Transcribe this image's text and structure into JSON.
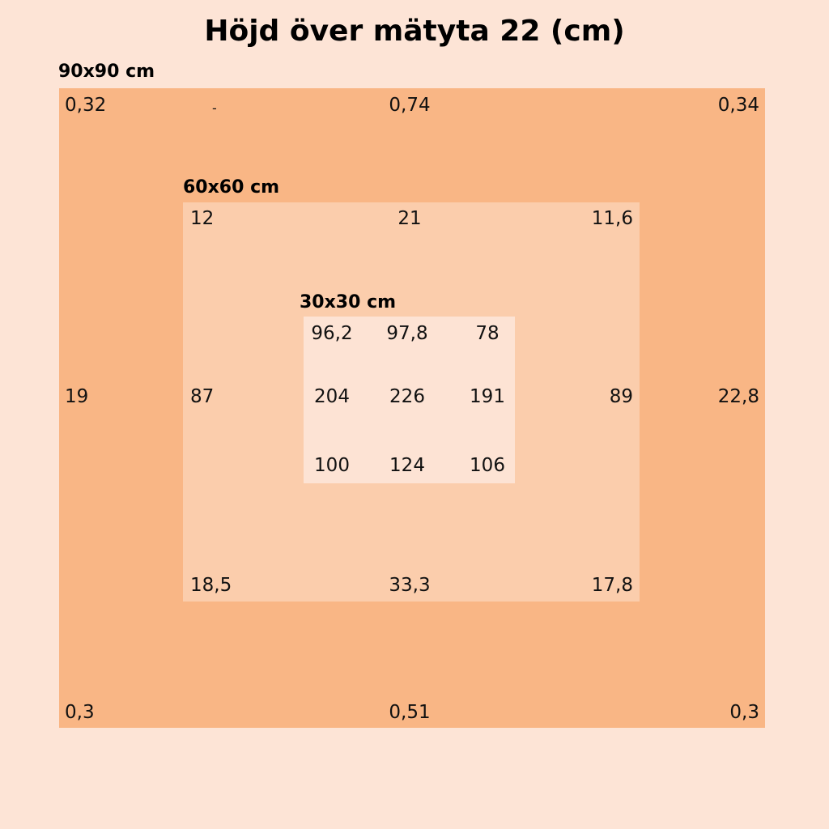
{
  "title": "Höjd över mätyta 22 (cm)",
  "squares": [
    {
      "label": "90x90 cm",
      "rows": [
        [
          "0,32",
          "0,74",
          "0,34"
        ],
        [
          "19",
          "22,8"
        ],
        [
          "0,3",
          "0,51",
          "0,3"
        ]
      ],
      "mark": "-"
    },
    {
      "label": "60x60 cm",
      "rows": [
        [
          "12",
          "21",
          "11,6"
        ],
        [
          "87",
          "89"
        ],
        [
          "18,5",
          "33,3",
          "17,8"
        ]
      ]
    },
    {
      "label": "30x30 cm",
      "rows": [
        [
          "96,2",
          "97,8",
          "78"
        ],
        [
          "204",
          "226",
          "191"
        ],
        [
          "100",
          "124",
          "106"
        ]
      ]
    }
  ]
}
